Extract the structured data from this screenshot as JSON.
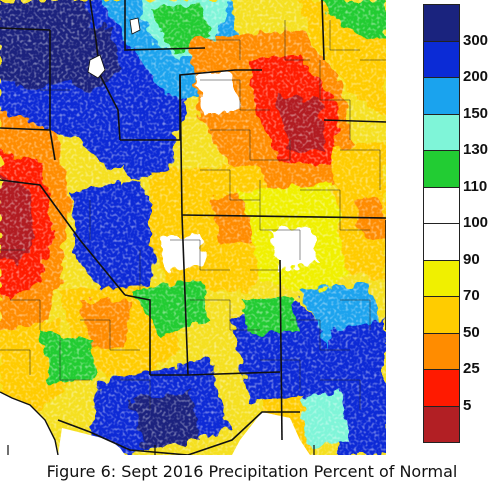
{
  "caption": "Figure 6: Sept 2016 Precipitation Percent of Normal",
  "legend": {
    "swatches": [
      {
        "name": "gt-300",
        "color": "#1a237e"
      },
      {
        "name": "200-300",
        "color": "#0b2bd6"
      },
      {
        "name": "150-200",
        "color": "#1aa3ee"
      },
      {
        "name": "130-150",
        "color": "#7ff5d8"
      },
      {
        "name": "110-130",
        "color": "#22cc33"
      },
      {
        "name": "100-110",
        "color": "#ffffff"
      },
      {
        "name": "90-100",
        "color": "#ffffff"
      },
      {
        "name": "70-90",
        "color": "#f0f000"
      },
      {
        "name": "50-70",
        "color": "#ffcc00"
      },
      {
        "name": "25-50",
        "color": "#ff8c00"
      },
      {
        "name": "5-25",
        "color": "#ff1a00"
      },
      {
        "name": "lt-5",
        "color": "#b21f24"
      }
    ],
    "labels": [
      "300",
      "200",
      "150",
      "130",
      "110",
      "100",
      "90",
      "70",
      "50",
      "25",
      "5"
    ]
  },
  "map": {
    "base_color": "#f5e020"
  }
}
